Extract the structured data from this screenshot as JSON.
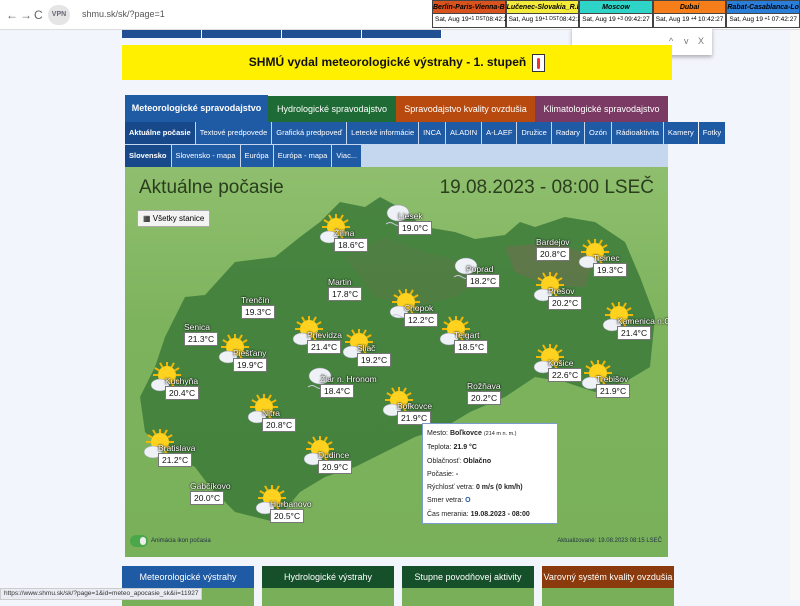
{
  "browser": {
    "back": "←",
    "forward": "→",
    "reload": "C",
    "url": "shmu.sk/sk/?page=1"
  },
  "clocks": [
    {
      "city": "Berlin-Paris-Vienna-Belgrade",
      "date": "Sat, Aug 19",
      "tz": "+1 DST",
      "time": "08:42:27",
      "color": "#d9531e"
    },
    {
      "city": "Lučenec-Slovakia_R.Dávid",
      "date": "Sat, Aug 19",
      "tz": "+1 DST",
      "time": "08:42:27",
      "color": "#f3ea3a"
    },
    {
      "city": "Moscow",
      "date": "Sat, Aug 19",
      "tz": "+3",
      "time": "09:42:27",
      "color": "#2ed4c8"
    },
    {
      "city": "Dubai",
      "date": "Sat, Aug 19",
      "tz": "+4",
      "time": "10:42:27",
      "color": "#f57e1a"
    },
    {
      "city": "Rabat-Casablanca-London",
      "date": "Sat, Aug 19",
      "tz": "+1",
      "time": "07:42:27",
      "color": "#2a7ed8"
    }
  ],
  "findbar": {
    "up": "^",
    "down": "v",
    "close": "X"
  },
  "banner": {
    "text": "SHMÚ vydal meteorologické výstrahy - 1. stupeň"
  },
  "main_tabs": [
    {
      "label": "Meteorologické spravodajstvo",
      "color": "#1f5aa5",
      "text": "#fff"
    },
    {
      "label": "Hydrologické spravodajstvo",
      "color": "#1e6b35",
      "text": "#fff"
    },
    {
      "label": "Spravodajstvo kvality ovzdušia",
      "color": "#b84a10",
      "text": "#fff"
    },
    {
      "label": "Klimatologické spravodajstvo",
      "color": "#7a3a63",
      "text": "#fff"
    }
  ],
  "sub_tabs": [
    "Aktuálne počasie",
    "Textové predpovede",
    "Grafická predpoveď",
    "Letecké informácie",
    "INCA",
    "ALADIN",
    "A-LAEF",
    "Družice",
    "Radary",
    "Ozón",
    "Rádioaktivita",
    "Kamery",
    "Fotky"
  ],
  "sub_tabs2": [
    "Slovensko",
    "Slovensko - mapa",
    "Európa",
    "Európa - mapa",
    "Viac..."
  ],
  "map": {
    "title": "Aktuálne počasie",
    "date": "19.08.2023 - 08:00 LSEČ",
    "all_stations": "Všetky stanice",
    "toggle_label": "Animácia ikon počasia",
    "updated": "Aktualizované: 19.08.2023 08:15 LSEČ",
    "stations": [
      {
        "name": "Žilina",
        "temp": "18.6°C",
        "icon": "partly-sunny"
      },
      {
        "name": "Liesek",
        "temp": "19.0°C",
        "icon": "cloudy-fog"
      },
      {
        "name": "Poprad",
        "temp": "18.2°C",
        "icon": "cloudy-fog"
      },
      {
        "name": "Bardejov",
        "temp": "20.8°C",
        "icon": "none"
      },
      {
        "name": "Tisinec",
        "temp": "19.3°C",
        "icon": "partly-sunny"
      },
      {
        "name": "Martin",
        "temp": "17.8°C",
        "icon": "none"
      },
      {
        "name": "Chopok",
        "temp": "12.2°C",
        "icon": "partly-sunny-fog"
      },
      {
        "name": "Prešov",
        "temp": "20.2°C",
        "icon": "partly-sunny"
      },
      {
        "name": "Trenčín",
        "temp": "19.3°C",
        "icon": "none"
      },
      {
        "name": "Senica",
        "temp": "21.3°C",
        "icon": "none"
      },
      {
        "name": "Prievidza",
        "temp": "21.4°C",
        "icon": "partly-sunny"
      },
      {
        "name": "Teigart",
        "temp": "18.5°C",
        "icon": "partly-sunny"
      },
      {
        "name": "Kamenica n.C.",
        "temp": "21.4°C",
        "icon": "partly-sunny"
      },
      {
        "name": "Sliač",
        "temp": "19.2°C",
        "icon": "partly-sunny"
      },
      {
        "name": "Piešťany",
        "temp": "19.9°C",
        "icon": "partly-sunny"
      },
      {
        "name": "Žiar n. Hronom",
        "temp": "18.4°C",
        "icon": "cloudy-fog"
      },
      {
        "name": "Kuchyňa",
        "temp": "20.4°C",
        "icon": "partly-sunny"
      },
      {
        "name": "Rožňava",
        "temp": "20.2°C",
        "icon": "none"
      },
      {
        "name": "Košice",
        "temp": "22.6°C",
        "icon": "partly-sunny"
      },
      {
        "name": "Trebišov",
        "temp": "21.9°C",
        "icon": "partly-sunny"
      },
      {
        "name": "Boľkovce",
        "temp": "21.9°C",
        "icon": "partly-sunny"
      },
      {
        "name": "Nitra",
        "temp": "20.8°C",
        "icon": "partly-sunny"
      },
      {
        "name": "Bratislava",
        "temp": "21.2°C",
        "icon": "partly-sunny"
      },
      {
        "name": "Dudince",
        "temp": "20.9°C",
        "icon": "partly-sunny"
      },
      {
        "name": "Gabčíkovo",
        "temp": "20.0°C",
        "icon": "none"
      },
      {
        "name": "Hurbanovo",
        "temp": "20.5°C",
        "icon": "partly-sunny"
      }
    ],
    "tooltip": {
      "city_label": "Mesto:",
      "city": "Boľkovce",
      "altitude": "(214 m n. m.)",
      "temp_label": "Teplota:",
      "temp": "21.9 °C",
      "cloud_label": "Oblačnosť:",
      "cloud": "Oblačno",
      "weather_label": "Počasie:",
      "weather": "-",
      "wind_label": "Rýchlosť vetra:",
      "wind": "0 m/s (0 km/h)",
      "dir_label": "Smer vetra:",
      "dir": "O",
      "time_label": "Čas merania:",
      "time": "19.08.2023 - 08:00"
    }
  },
  "cards": [
    {
      "label": "Meteorologické výstrahy",
      "color": "#1f5aa5"
    },
    {
      "label": "Hydrologické výstrahy",
      "color": "#15502a"
    },
    {
      "label": "Stupne povodňovej aktivity",
      "color": "#15502a"
    },
    {
      "label": "Varovný systém kvality ovzdušia",
      "color": "#8a3a0c"
    }
  ],
  "status_url": "https://www.shmu.sk/sk/?page=1&id=meteo_apocasie_sk&ii=11927"
}
